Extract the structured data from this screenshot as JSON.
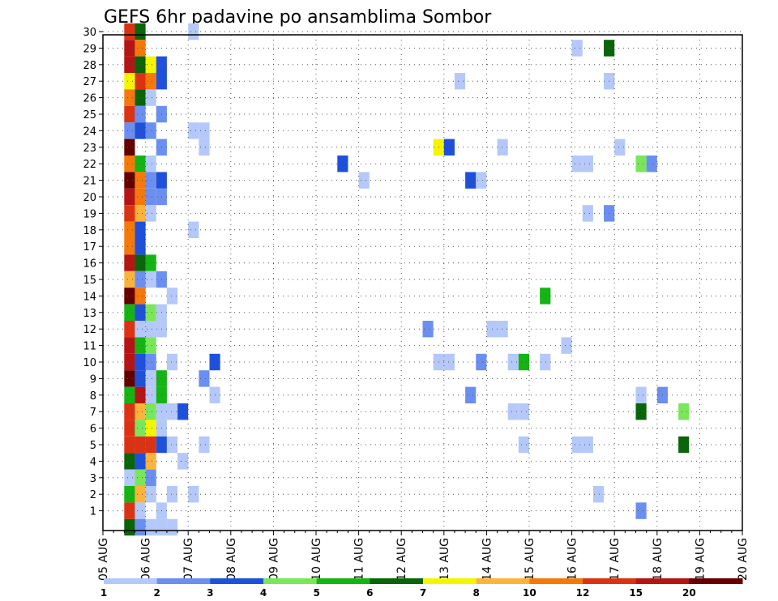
{
  "chart_data": {
    "type": "heatmap",
    "title": "GEFS 6hr padavine po ansamblima Sombor",
    "x_tick_labels": [
      "05 AUG",
      "06 AUG",
      "07 AUG",
      "08 AUG",
      "09 AUG",
      "10 AUG",
      "11 AUG",
      "12 AUG",
      "13 AUG",
      "14 AUG",
      "15 AUG",
      "16 AUG",
      "17 AUG",
      "18 AUG",
      "19 AUG",
      "20 AUG"
    ],
    "y_tick_labels": [
      "1",
      "2",
      "3",
      "4",
      "5",
      "6",
      "7",
      "8",
      "9",
      "10",
      "11",
      "12",
      "13",
      "14",
      "15",
      "16",
      "17",
      "18",
      "19",
      "20",
      "21",
      "22",
      "23",
      "24",
      "25",
      "26",
      "27",
      "28",
      "29",
      "30"
    ],
    "grid": true,
    "colorbar": {
      "placement": "bottom",
      "tick_labels": [
        "1",
        "2",
        "3",
        "4",
        "5",
        "6",
        "7",
        "8",
        "10",
        "12",
        "15",
        "20"
      ],
      "colors": [
        "#b4c8fa",
        "#6b8ff0",
        "#1e50dc",
        "#7ae65a",
        "#14b414",
        "#0a640a",
        "#f5f500",
        "#fab43c",
        "#f5780a",
        "#dc3214",
        "#b41414",
        "#640000"
      ]
    },
    "cells": [
      [
        30,
        2,
        10
      ],
      [
        30,
        3,
        6
      ],
      [
        30,
        8,
        1
      ],
      [
        29,
        2,
        11
      ],
      [
        29,
        3,
        9
      ],
      [
        29,
        44,
        1
      ],
      [
        29,
        47,
        6
      ],
      [
        28,
        2,
        11
      ],
      [
        28,
        3,
        6
      ],
      [
        28,
        4,
        7
      ],
      [
        28,
        5,
        3
      ],
      [
        27,
        2,
        7
      ],
      [
        27,
        3,
        10
      ],
      [
        27,
        4,
        9
      ],
      [
        27,
        5,
        3
      ],
      [
        27,
        33,
        1
      ],
      [
        27,
        47,
        1
      ],
      [
        26,
        2,
        9
      ],
      [
        26,
        3,
        6
      ],
      [
        26,
        4,
        1
      ],
      [
        25,
        2,
        10
      ],
      [
        25,
        3,
        2
      ],
      [
        25,
        5,
        2
      ],
      [
        24,
        2,
        2
      ],
      [
        24,
        3,
        3
      ],
      [
        24,
        4,
        2
      ],
      [
        24,
        8,
        1
      ],
      [
        24,
        9,
        1
      ],
      [
        23,
        2,
        12
      ],
      [
        23,
        5,
        2
      ],
      [
        23,
        9,
        1
      ],
      [
        23,
        31,
        7
      ],
      [
        23,
        32,
        3
      ],
      [
        23,
        37,
        1
      ],
      [
        23,
        48,
        1
      ],
      [
        22,
        2,
        9
      ],
      [
        22,
        3,
        5
      ],
      [
        22,
        4,
        1
      ],
      [
        22,
        22,
        3
      ],
      [
        22,
        44,
        1
      ],
      [
        22,
        45,
        1
      ],
      [
        22,
        50,
        4
      ],
      [
        22,
        51,
        2
      ],
      [
        21,
        2,
        12
      ],
      [
        21,
        3,
        9
      ],
      [
        21,
        4,
        2
      ],
      [
        21,
        5,
        3
      ],
      [
        21,
        24,
        1
      ],
      [
        21,
        34,
        3
      ],
      [
        21,
        35,
        1
      ],
      [
        20,
        2,
        11
      ],
      [
        20,
        3,
        9
      ],
      [
        20,
        4,
        2
      ],
      [
        20,
        5,
        2
      ],
      [
        19,
        2,
        10
      ],
      [
        19,
        3,
        8
      ],
      [
        19,
        4,
        1
      ],
      [
        19,
        45,
        1
      ],
      [
        19,
        47,
        2
      ],
      [
        18,
        2,
        9
      ],
      [
        18,
        3,
        3
      ],
      [
        18,
        8,
        1
      ],
      [
        17,
        2,
        9
      ],
      [
        17,
        3,
        3
      ],
      [
        16,
        2,
        11
      ],
      [
        16,
        3,
        6
      ],
      [
        16,
        4,
        5
      ],
      [
        15,
        2,
        8
      ],
      [
        15,
        3,
        2
      ],
      [
        15,
        4,
        1
      ],
      [
        15,
        5,
        2
      ],
      [
        14,
        2,
        12
      ],
      [
        14,
        3,
        9
      ],
      [
        14,
        6,
        1
      ],
      [
        14,
        41,
        5
      ],
      [
        13,
        2,
        5
      ],
      [
        13,
        3,
        3
      ],
      [
        13,
        4,
        4
      ],
      [
        13,
        5,
        1
      ],
      [
        12,
        2,
        10
      ],
      [
        12,
        3,
        1
      ],
      [
        12,
        4,
        1
      ],
      [
        12,
        5,
        1
      ],
      [
        12,
        30,
        2
      ],
      [
        12,
        36,
        1
      ],
      [
        12,
        37,
        1
      ],
      [
        11,
        2,
        11
      ],
      [
        11,
        3,
        5
      ],
      [
        11,
        4,
        4
      ],
      [
        11,
        43,
        1
      ],
      [
        10,
        2,
        11
      ],
      [
        10,
        3,
        3
      ],
      [
        10,
        4,
        2
      ],
      [
        10,
        6,
        1
      ],
      [
        10,
        10,
        3
      ],
      [
        10,
        31,
        1
      ],
      [
        10,
        32,
        1
      ],
      [
        10,
        35,
        2
      ],
      [
        10,
        38,
        1
      ],
      [
        10,
        39,
        5
      ],
      [
        10,
        41,
        1
      ],
      [
        9,
        2,
        12
      ],
      [
        9,
        3,
        3
      ],
      [
        9,
        4,
        1
      ],
      [
        9,
        5,
        5
      ],
      [
        9,
        9,
        2
      ],
      [
        8,
        2,
        5
      ],
      [
        8,
        3,
        11
      ],
      [
        8,
        4,
        1
      ],
      [
        8,
        5,
        5
      ],
      [
        8,
        10,
        1
      ],
      [
        8,
        34,
        2
      ],
      [
        8,
        50,
        1
      ],
      [
        8,
        52,
        2
      ],
      [
        7,
        2,
        10
      ],
      [
        7,
        3,
        8
      ],
      [
        7,
        4,
        4
      ],
      [
        7,
        5,
        1
      ],
      [
        7,
        6,
        1
      ],
      [
        7,
        7,
        3
      ],
      [
        7,
        38,
        1
      ],
      [
        7,
        39,
        1
      ],
      [
        7,
        50,
        6
      ],
      [
        7,
        54,
        4
      ],
      [
        6,
        2,
        10
      ],
      [
        6,
        3,
        4
      ],
      [
        6,
        4,
        7
      ],
      [
        6,
        5,
        1
      ],
      [
        5,
        2,
        10
      ],
      [
        5,
        3,
        10
      ],
      [
        5,
        4,
        10
      ],
      [
        5,
        5,
        3
      ],
      [
        5,
        6,
        1
      ],
      [
        5,
        9,
        1
      ],
      [
        5,
        39,
        1
      ],
      [
        5,
        44,
        1
      ],
      [
        5,
        45,
        1
      ],
      [
        5,
        54,
        6
      ],
      [
        4,
        2,
        6
      ],
      [
        4,
        3,
        3
      ],
      [
        4,
        4,
        8
      ],
      [
        4,
        7,
        1
      ],
      [
        3,
        2,
        1
      ],
      [
        3,
        3,
        4
      ],
      [
        3,
        4,
        2
      ],
      [
        2,
        2,
        5
      ],
      [
        2,
        3,
        8
      ],
      [
        2,
        4,
        1
      ],
      [
        2,
        6,
        1
      ],
      [
        2,
        8,
        1
      ],
      [
        2,
        46,
        1
      ],
      [
        1,
        2,
        10
      ],
      [
        1,
        3,
        1
      ],
      [
        1,
        5,
        1
      ],
      [
        1,
        50,
        2
      ],
      [
        0,
        2,
        6
      ],
      [
        0,
        3,
        2
      ],
      [
        0,
        4,
        1
      ],
      [
        0,
        5,
        1
      ],
      [
        0,
        6,
        1
      ]
    ]
  }
}
